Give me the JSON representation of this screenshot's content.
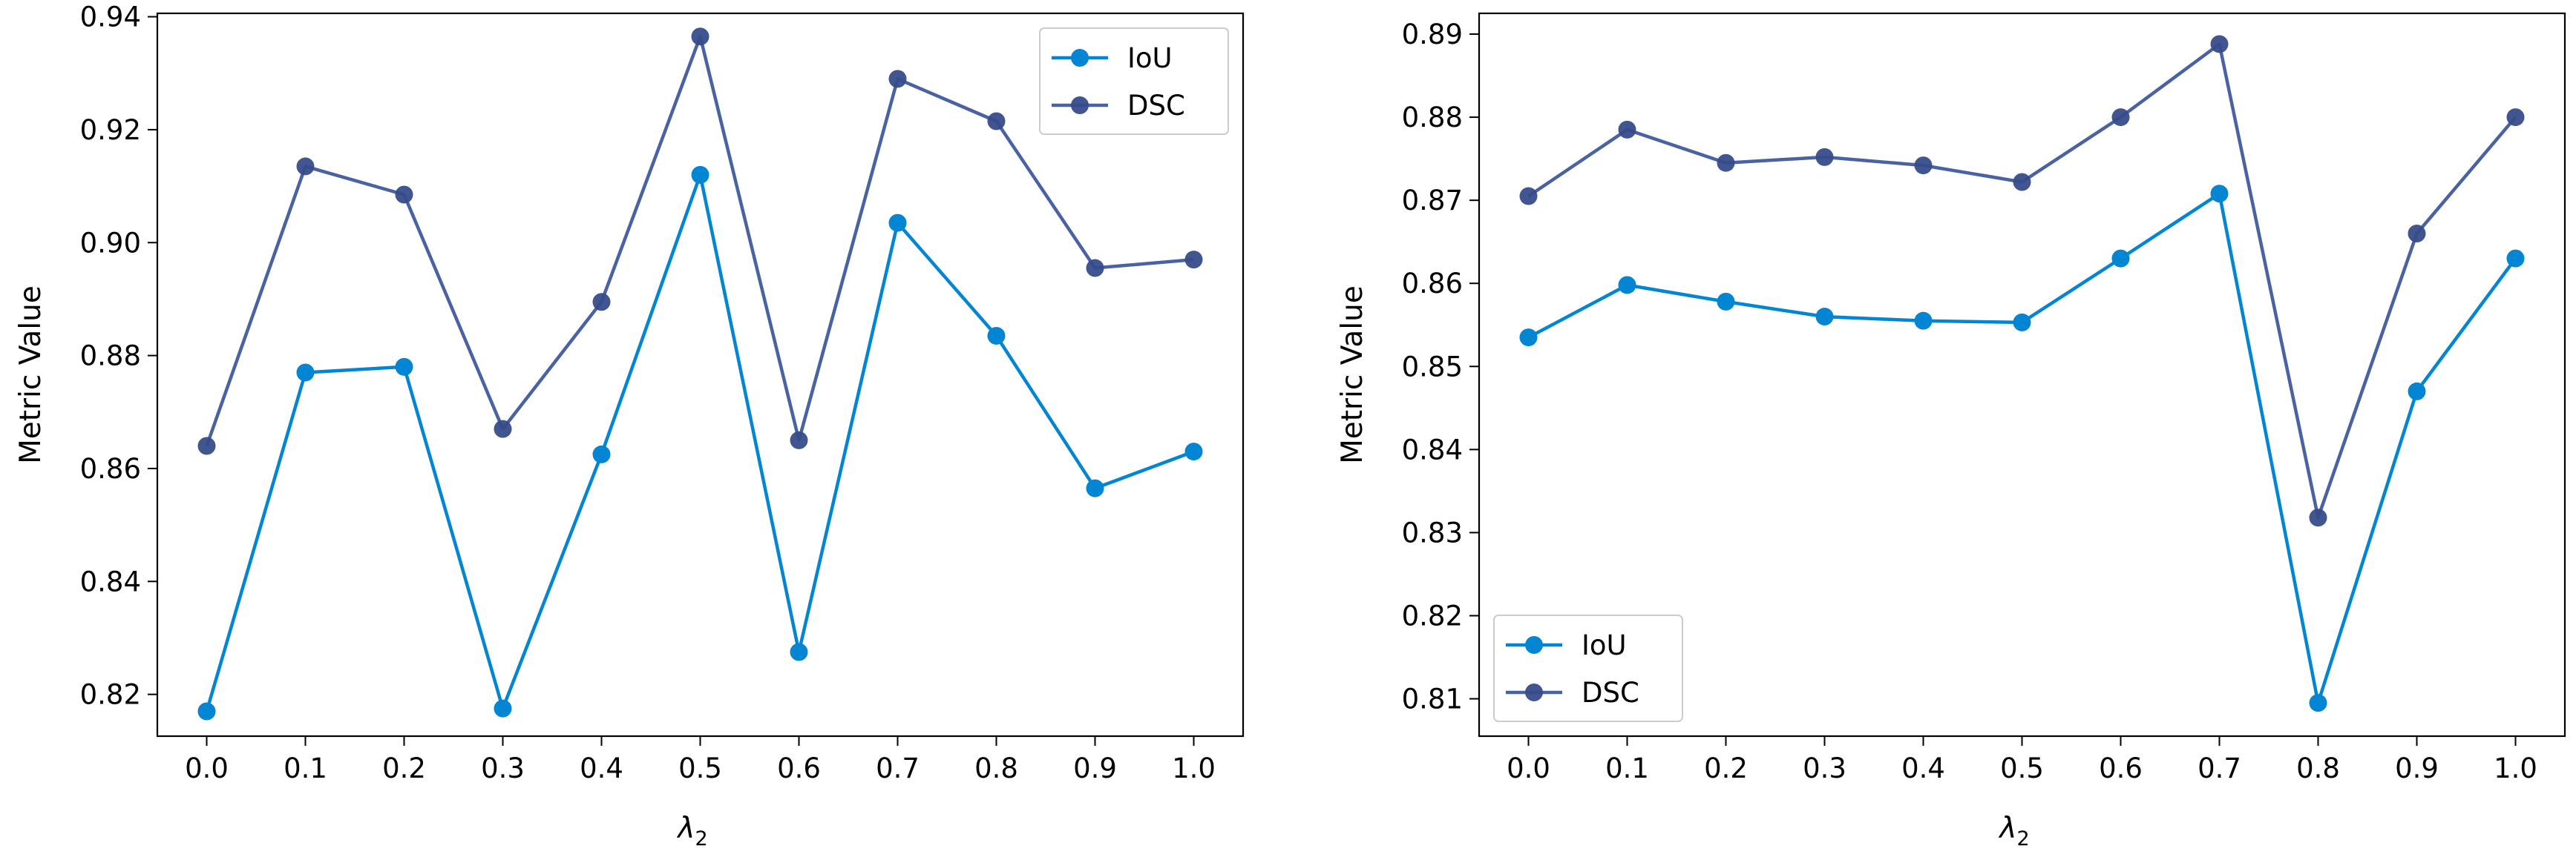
{
  "colors": {
    "IoU": "#0285d2",
    "DSC": "#3f5a9e",
    "DSC_marker": "#374c8a"
  },
  "chart_data": [
    {
      "type": "line",
      "title": "",
      "xlabel_base": "λ",
      "xlabel_sub": "2",
      "ylabel": "Metric Value",
      "x": [
        0.0,
        0.1,
        0.2,
        0.3,
        0.4,
        0.5,
        0.6,
        0.7,
        0.8,
        0.9,
        1.0
      ],
      "x_ticks": [
        "0.0",
        "0.1",
        "0.2",
        "0.3",
        "0.4",
        "0.5",
        "0.6",
        "0.7",
        "0.8",
        "0.9",
        "1.0"
      ],
      "y_ticks": [
        "0.82",
        "0.84",
        "0.86",
        "0.88",
        "0.90",
        "0.92",
        "0.94"
      ],
      "xlim": [
        -0.05,
        1.05
      ],
      "ylim": [
        0.8126,
        0.9406
      ],
      "legend_position": "upper-right",
      "grid": false,
      "series": [
        {
          "name": "IoU",
          "values": [
            0.817,
            0.877,
            0.878,
            0.8175,
            0.8625,
            0.912,
            0.8275,
            0.9035,
            0.8835,
            0.8565,
            0.863
          ]
        },
        {
          "name": "DSC",
          "values": [
            0.864,
            0.9135,
            0.9085,
            0.867,
            0.8895,
            0.9365,
            0.865,
            0.929,
            0.9215,
            0.8955,
            0.897
          ]
        }
      ]
    },
    {
      "type": "line",
      "title": "",
      "xlabel_base": "λ",
      "xlabel_sub": "2",
      "ylabel": "Metric Value",
      "x": [
        0.0,
        0.1,
        0.2,
        0.3,
        0.4,
        0.5,
        0.6,
        0.7,
        0.8,
        0.9,
        1.0
      ],
      "x_ticks": [
        "0.0",
        "0.1",
        "0.2",
        "0.3",
        "0.4",
        "0.5",
        "0.6",
        "0.7",
        "0.8",
        "0.9",
        "1.0"
      ],
      "y_ticks": [
        "0.81",
        "0.82",
        "0.83",
        "0.84",
        "0.85",
        "0.86",
        "0.87",
        "0.88",
        "0.89"
      ],
      "xlim": [
        -0.05,
        1.05
      ],
      "ylim": [
        0.8055,
        0.8925
      ],
      "legend_position": "lower-left",
      "grid": false,
      "series": [
        {
          "name": "IoU",
          "values": [
            0.8535,
            0.8598,
            0.8578,
            0.856,
            0.8555,
            0.8553,
            0.863,
            0.8708,
            0.8095,
            0.847,
            0.863
          ]
        },
        {
          "name": "DSC",
          "values": [
            0.8705,
            0.8785,
            0.8745,
            0.8752,
            0.8742,
            0.8722,
            0.88,
            0.8888,
            0.8318,
            0.866,
            0.88
          ]
        }
      ]
    }
  ]
}
